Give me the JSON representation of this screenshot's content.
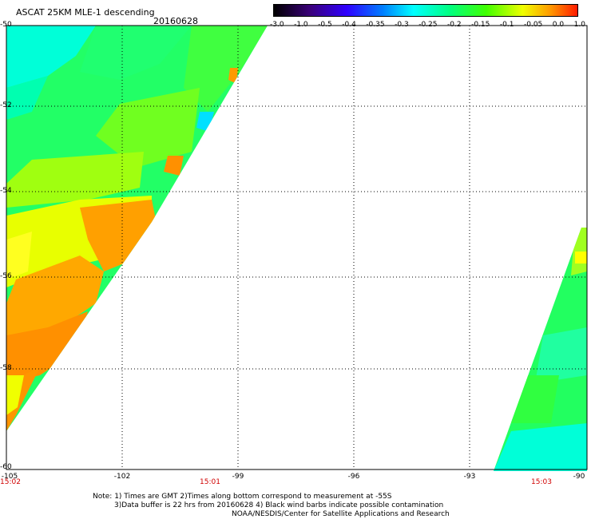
{
  "header": {
    "title": "ASCAT 25KM MLE-1 descending",
    "date": "20160628"
  },
  "colorbar": {
    "labels": [
      "-3.0",
      "-1.0",
      "-0.5",
      "-0.4",
      "-0.35",
      "-0.3",
      "-0.25",
      "-0.2",
      "-0.15",
      "-0.1",
      "-0.05",
      "0.0",
      "1.0"
    ]
  },
  "axes": {
    "latitudes": [
      "-50",
      "-52",
      "-54",
      "-56",
      "-58",
      "-60"
    ],
    "longitudes": [
      "-105",
      "-102",
      "-99",
      "-96",
      "-93",
      "-90"
    ]
  },
  "times": [
    "15:02",
    "15:01",
    "15:03"
  ],
  "notes": [
    "Note: 1) Times are GMT 2)Times along bottom correspond to measurement at -55S",
    "3)Data buffer is 22 hrs from 20160628 4) Black wind barbs indicate possible contamination",
    "NOAA/NESDIS/Center for Satellite Applications and Research"
  ],
  "colors": {
    "cyan": "#00ffff",
    "green": "#00ff40",
    "yellow_green": "#b0ff00",
    "yellow": "#ffff00",
    "orange": "#ff9a00",
    "time_red": "#d00000"
  }
}
